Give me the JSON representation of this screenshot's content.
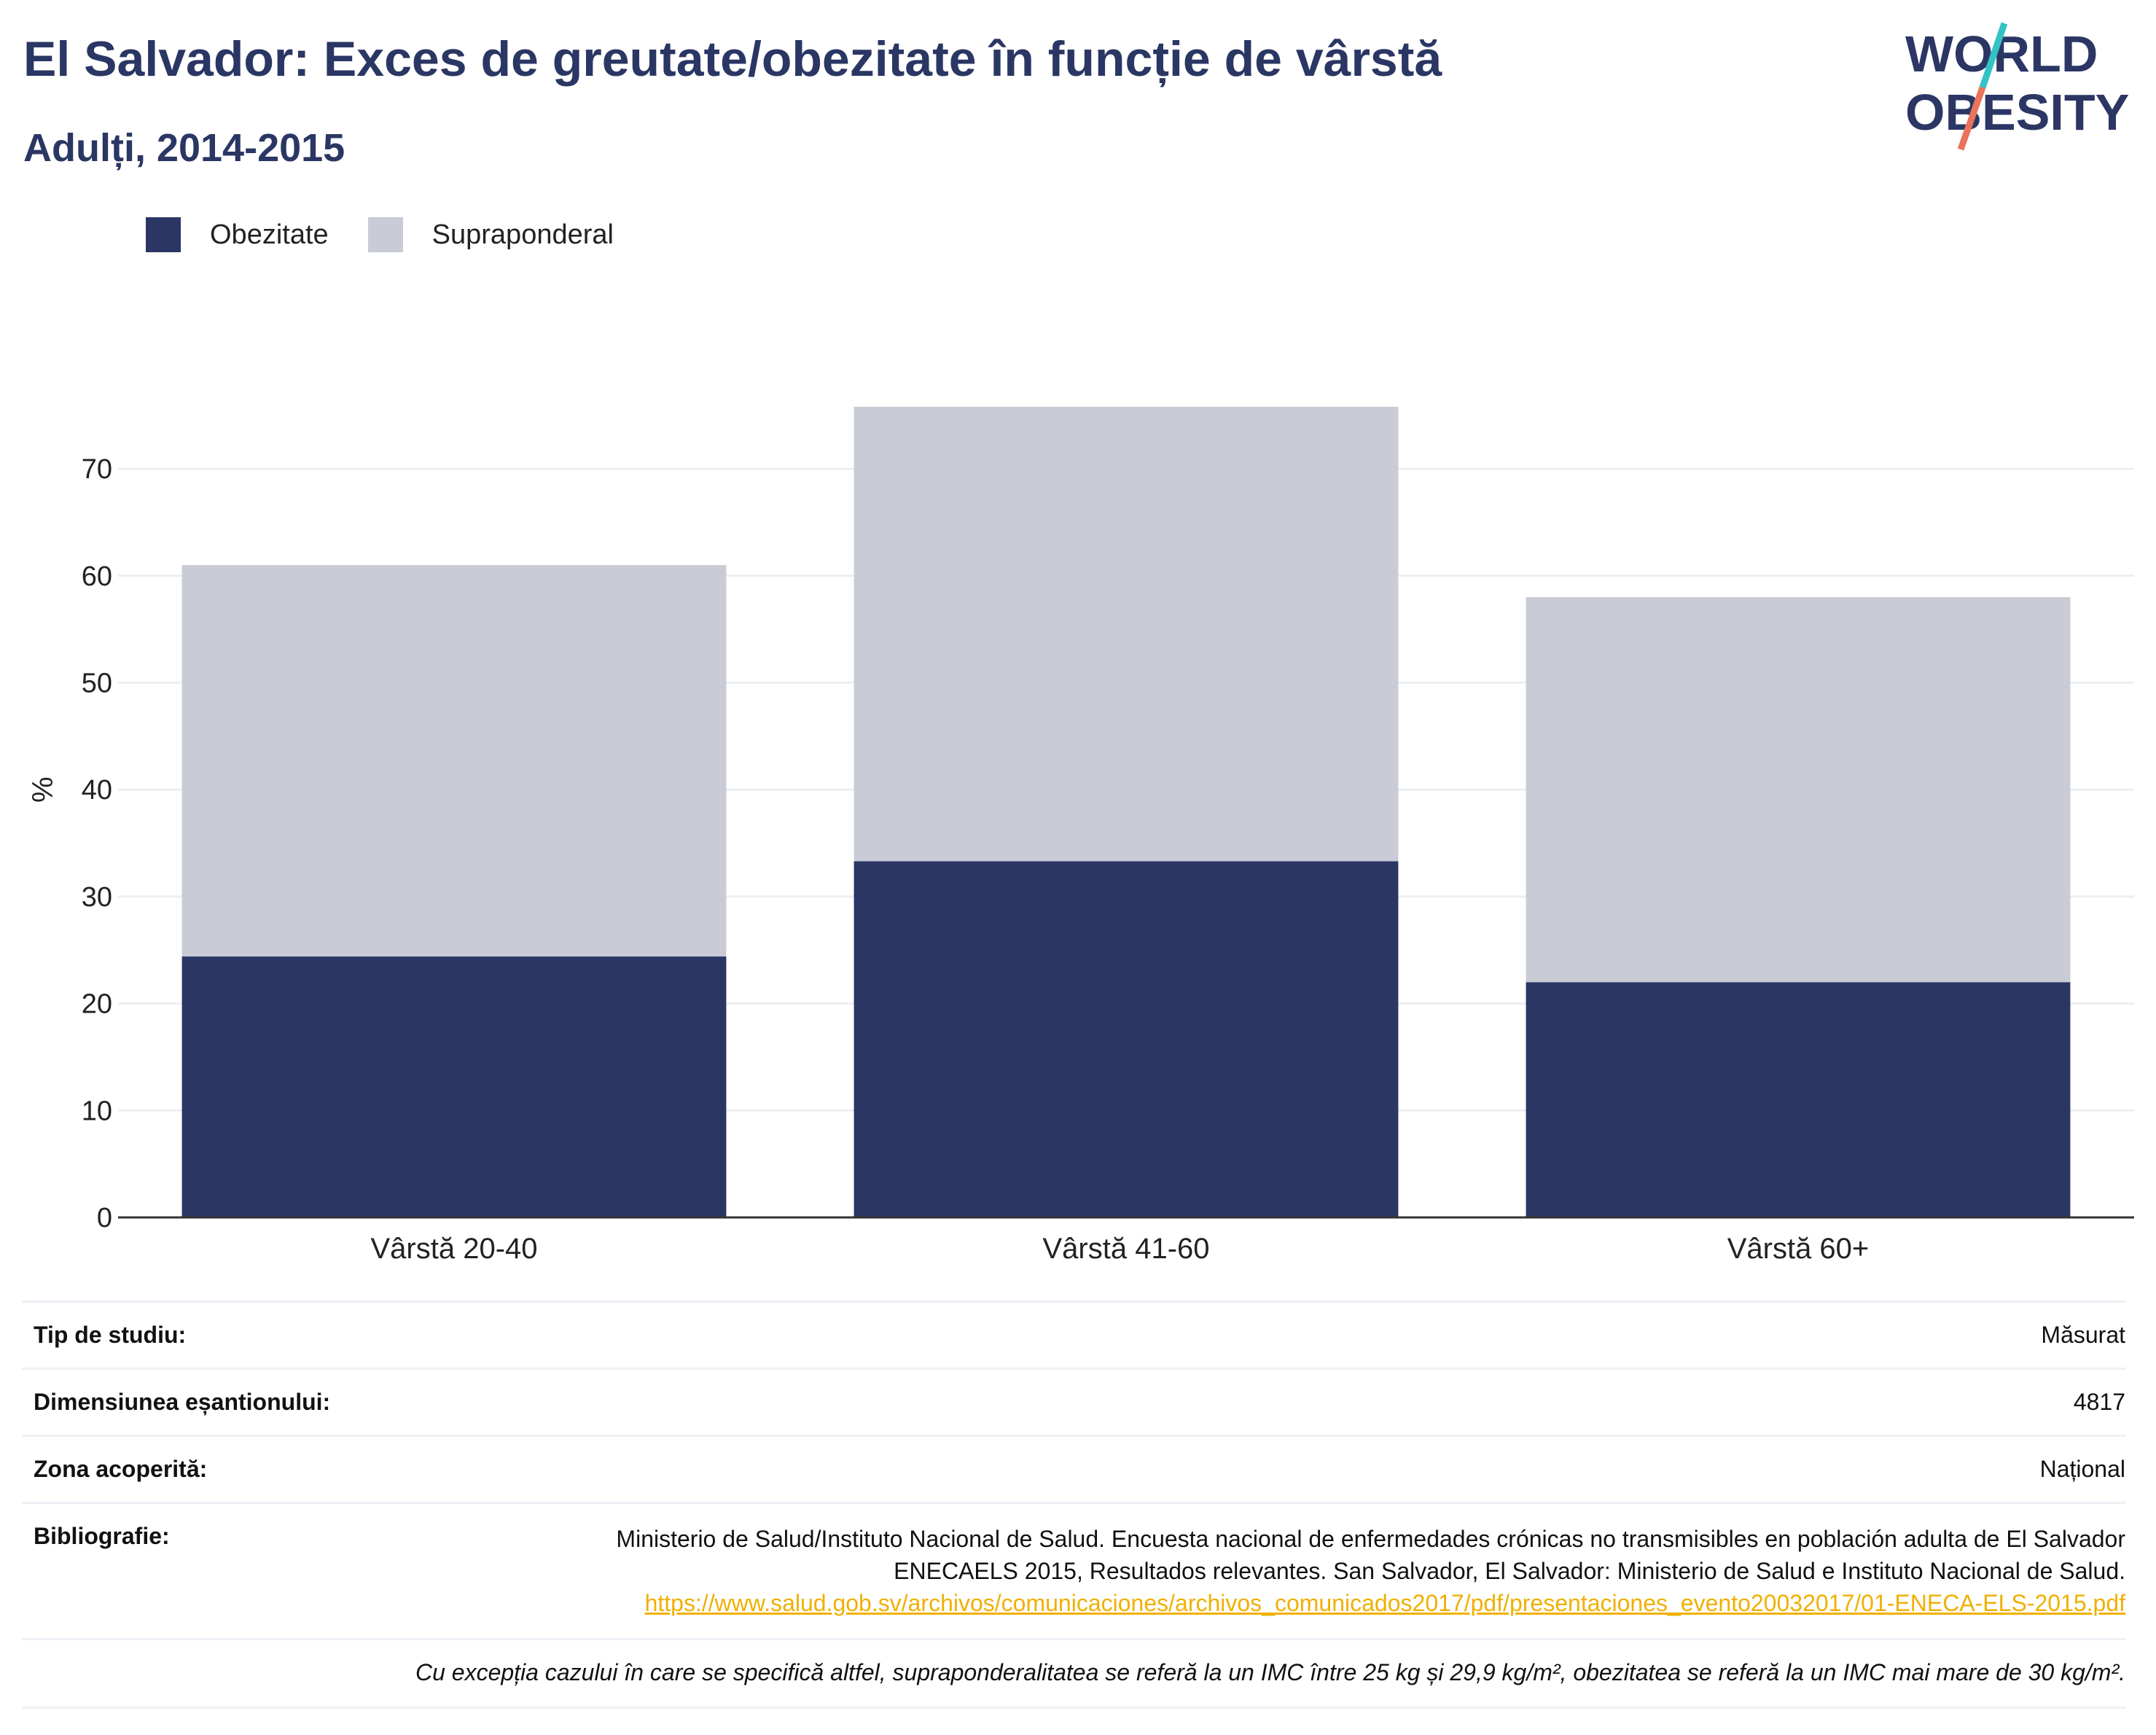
{
  "title": "El Salvador: Exces de greutate/obezitate în funcție de vârstă",
  "subtitle": "Adulți, 2014-2015",
  "logo": {
    "line1": "WORLD",
    "line2": "OBESITY"
  },
  "colors": {
    "obesity": "#2b3664",
    "overweight": "#c9cbd7",
    "accent_teal": "#34c3c4",
    "accent_coral": "#e9735b",
    "link": "#f0b000"
  },
  "legend": {
    "obesity_label": "Obezitate",
    "overweight_label": "Supraponderal"
  },
  "chart_data": {
    "type": "bar",
    "stacked": true,
    "categories": [
      "Vârstă 20-40",
      "Vârstă 41-60",
      "Vârstă 60+"
    ],
    "series": [
      {
        "name": "Obezitate",
        "values": [
          24.4,
          33.3,
          22.0
        ]
      },
      {
        "name": "Supraponderal",
        "values": [
          36.6,
          42.5,
          36.0
        ]
      }
    ],
    "totals": [
      61.0,
      75.8,
      58.0
    ],
    "ylabel": "%",
    "ylim": [
      0,
      80
    ],
    "yticks": [
      0,
      10,
      20,
      30,
      40,
      50,
      60,
      70
    ],
    "grid": true,
    "legend_position": "top-left"
  },
  "info": {
    "study_type": {
      "label": "Tip de studiu:",
      "value": "Măsurat"
    },
    "sample_size": {
      "label": "Dimensiunea eșantionului:",
      "value": "4817"
    },
    "area": {
      "label": "Zona acoperită:",
      "value": "Național"
    },
    "bibliography": {
      "label": "Bibliografie:",
      "text": "Ministerio de Salud/Instituto Nacional de Salud. Encuesta nacional de enfermedades crónicas no transmisibles en población adulta de El Salvador ENECAELS 2015, Resultados relevantes. San Salvador, El Salvador: Ministerio de Salud e Instituto Nacional de Salud.",
      "link": "https://www.salud.gob.sv/archivos/comunicaciones/archivos_comunicados2017/pdf/presentaciones_evento20032017/01-ENECA-ELS-2015.pdf"
    },
    "note": "Cu excepția cazului în care se specifică altfel, supraponderalitatea se referă la un IMC între 25 kg și 29,9 kg/m², obezitatea se referă la un IMC mai mare de 30 kg/m²."
  }
}
